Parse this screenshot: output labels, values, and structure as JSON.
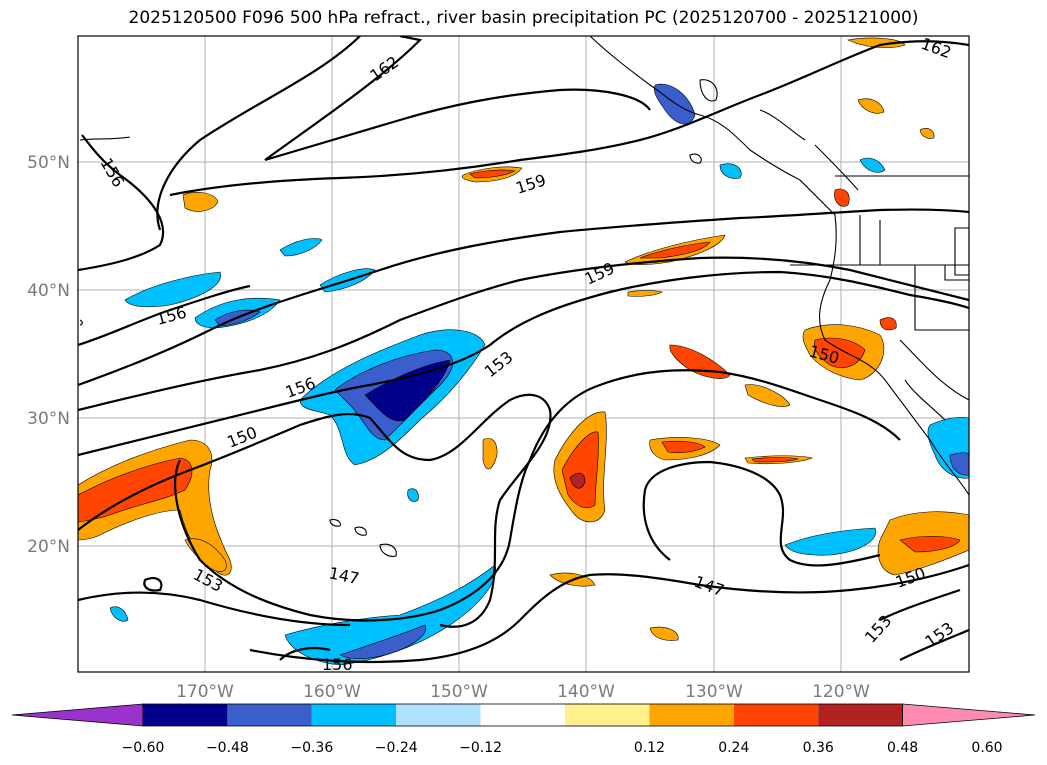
{
  "title": "2025120500 F096 500 hPa refract., river basin precipitation PC (2025120700 - 2025121000)",
  "lat_labels": [
    "50°N",
    "40°N",
    "30°N",
    "20°N"
  ],
  "lon_labels": [
    "170°W",
    "160°W",
    "150°W",
    "140°W",
    "130°W",
    "120°W"
  ],
  "colorbar": {
    "colors": [
      "#9a32cd",
      "#00008b",
      "#3a5fcd",
      "#00bfff",
      "#b0e2ff",
      "#ffffff",
      "#fff08c",
      "#ffa500",
      "#ff4500",
      "#b22222",
      "#ff8cb0"
    ],
    "labels": [
      "−0.60",
      "−0.48",
      "−0.36",
      "−0.24",
      "−0.12",
      "0.12",
      "0.24",
      "0.36",
      "0.48",
      "0.60"
    ]
  },
  "contour_labels": [
    "162",
    "162",
    "156",
    "159",
    "159",
    "156",
    "156",
    "153",
    "150",
    "150",
    "153",
    "147",
    "147",
    "150",
    "153",
    "153",
    "156"
  ]
}
